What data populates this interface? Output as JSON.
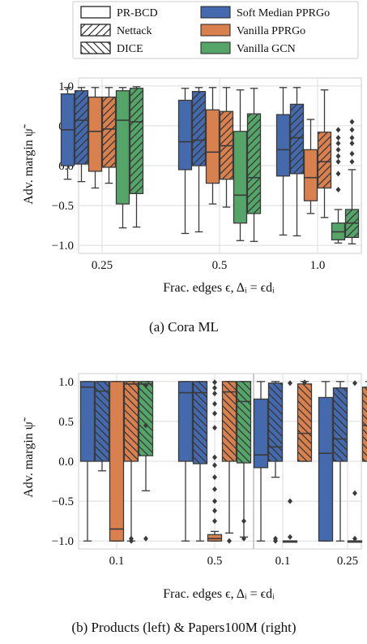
{
  "legend": {
    "patterns": [
      {
        "label": "PR-BCD",
        "hatch": "none"
      },
      {
        "label": "Nettack",
        "hatch": "forward"
      },
      {
        "label": "DICE",
        "hatch": "back"
      }
    ],
    "models": [
      {
        "label": "Soft Median PPRGo",
        "color": "#4469ac"
      },
      {
        "label": "Vanilla PPRGo",
        "color": "#d9804f"
      },
      {
        "label": "Vanilla GCN",
        "color": "#55a568"
      }
    ]
  },
  "chart_data": [
    {
      "type": "box",
      "panel": "a",
      "caption": "(a) Cora ML",
      "ylabel": "Adv. margin ψ̃",
      "xlabel": "Frac. edges ϵ, Δᵢ = ϵdᵢ",
      "ylim": [
        -1.1,
        1.1
      ],
      "yticks": [
        1.0,
        0.5,
        0.0,
        -0.5,
        -1.0
      ],
      "ytick_labels": [
        "1.0",
        "0.5",
        "0.0",
        "−0.5",
        "−1.0"
      ],
      "grid": true,
      "categories": [
        "0.25",
        "0.5",
        "1.0"
      ],
      "groups": [
        {
          "category": "0.25",
          "boxes": [
            {
              "model": "Soft Median PPRGo",
              "attack": "PR-BCD",
              "whislo": -0.17,
              "q1": 0.0,
              "med": 0.45,
              "q3": 0.9,
              "whishi": 0.98,
              "fliers": []
            },
            {
              "model": "Soft Median PPRGo",
              "attack": "Nettack",
              "whislo": -0.2,
              "q1": 0.02,
              "med": 0.57,
              "q3": 0.94,
              "whishi": 0.98,
              "fliers": []
            },
            {
              "model": "Vanilla PPRGo",
              "attack": "PR-BCD",
              "whislo": -0.28,
              "q1": -0.07,
              "med": 0.43,
              "q3": 0.86,
              "whishi": 0.98,
              "fliers": []
            },
            {
              "model": "Vanilla PPRGo",
              "attack": "Nettack",
              "whislo": -0.22,
              "q1": -0.02,
              "med": 0.46,
              "q3": 0.86,
              "whishi": 0.98,
              "fliers": []
            },
            {
              "model": "Vanilla GCN",
              "attack": "PR-BCD",
              "whislo": -0.78,
              "q1": -0.48,
              "med": 0.57,
              "q3": 0.94,
              "whishi": 0.98,
              "fliers": []
            },
            {
              "model": "Vanilla GCN",
              "attack": "Nettack",
              "whislo": -0.77,
              "q1": -0.35,
              "med": 0.55,
              "q3": 0.97,
              "whishi": 0.99,
              "fliers": []
            }
          ]
        },
        {
          "category": "0.5",
          "boxes": [
            {
              "model": "Soft Median PPRGo",
              "attack": "PR-BCD",
              "whislo": -0.85,
              "q1": -0.05,
              "med": 0.3,
              "q3": 0.82,
              "whishi": 0.97,
              "fliers": []
            },
            {
              "model": "Soft Median PPRGo",
              "attack": "Nettack",
              "whislo": -0.83,
              "q1": 0.0,
              "med": 0.32,
              "q3": 0.93,
              "whishi": 0.98,
              "fliers": []
            },
            {
              "model": "Vanilla PPRGo",
              "attack": "PR-BCD",
              "whislo": -0.48,
              "q1": -0.22,
              "med": 0.17,
              "q3": 0.7,
              "whishi": 0.98,
              "fliers": []
            },
            {
              "model": "Vanilla PPRGo",
              "attack": "Nettack",
              "whislo": -0.52,
              "q1": -0.17,
              "med": 0.25,
              "q3": 0.68,
              "whishi": 0.98,
              "fliers": []
            },
            {
              "model": "Vanilla GCN",
              "attack": "PR-BCD",
              "whislo": -0.94,
              "q1": -0.72,
              "med": -0.37,
              "q3": 0.43,
              "whishi": 0.95,
              "fliers": []
            },
            {
              "model": "Vanilla GCN",
              "attack": "Nettack",
              "whislo": -0.95,
              "q1": -0.6,
              "med": -0.15,
              "q3": 0.65,
              "whishi": 0.97,
              "fliers": []
            }
          ]
        },
        {
          "category": "1.0",
          "boxes": [
            {
              "model": "Soft Median PPRGo",
              "attack": "PR-BCD",
              "whislo": -0.87,
              "q1": -0.13,
              "med": 0.2,
              "q3": 0.64,
              "whishi": 0.98,
              "fliers": []
            },
            {
              "model": "Soft Median PPRGo",
              "attack": "Nettack",
              "whislo": -0.88,
              "q1": -0.1,
              "med": 0.35,
              "q3": 0.77,
              "whishi": 0.98,
              "fliers": []
            },
            {
              "model": "Vanilla PPRGo",
              "attack": "PR-BCD",
              "whislo": -0.6,
              "q1": -0.44,
              "med": -0.15,
              "q3": 0.2,
              "whishi": 0.58,
              "fliers": []
            },
            {
              "model": "Vanilla PPRGo",
              "attack": "Nettack",
              "whislo": -0.65,
              "q1": -0.28,
              "med": 0.05,
              "q3": 0.42,
              "whishi": 0.95,
              "fliers": []
            },
            {
              "model": "Vanilla GCN",
              "attack": "PR-BCD",
              "whislo": -0.97,
              "q1": -0.93,
              "med": -0.83,
              "q3": -0.72,
              "whishi": -0.55,
              "fliers": [
                0.05,
                0.12,
                0.2,
                0.28,
                0.35,
                0.45,
                -0.1,
                -0.3
              ]
            },
            {
              "model": "Vanilla GCN",
              "attack": "Nettack",
              "whislo": -0.98,
              "q1": -0.9,
              "med": -0.72,
              "q3": -0.55,
              "whishi": -0.05,
              "fliers": [
                0.05,
                0.15,
                0.28,
                0.35,
                0.45,
                0.55
              ]
            }
          ]
        }
      ]
    },
    {
      "type": "box",
      "panel": "b",
      "caption": "(b) Products (left) & Papers100M (right)",
      "ylabel": "Adv. margin ψ̃",
      "xlabel": "Frac. edges ϵ, Δᵢ = ϵdᵢ",
      "ylim": [
        -1.1,
        1.1
      ],
      "yticks": [
        1.0,
        0.5,
        0.0,
        -0.5,
        -1.0
      ],
      "ytick_labels": [
        "1.0",
        "0.5",
        "0.0",
        "−0.5",
        "−1.0"
      ],
      "grid": true,
      "categories": [
        "0.1",
        "0.5",
        "0.1",
        "0.25"
      ],
      "groups": [
        {
          "category": "0.1",
          "boxes": [
            {
              "model": "Soft Median PPRGo",
              "attack": "PR-BCD",
              "whislo": -1.0,
              "q1": 0.0,
              "med": 0.93,
              "q3": 1.0,
              "whishi": 1.0,
              "fliers": []
            },
            {
              "model": "Soft Median PPRGo",
              "attack": "DICE",
              "whislo": -0.12,
              "q1": 0.0,
              "med": 0.88,
              "q3": 1.0,
              "whishi": 1.0,
              "fliers": []
            },
            {
              "model": "Vanilla PPRGo",
              "attack": "PR-BCD",
              "whislo": -1.0,
              "q1": -1.0,
              "med": -0.85,
              "q3": 1.0,
              "whishi": 1.0,
              "fliers": []
            },
            {
              "model": "Vanilla PPRGo",
              "attack": "DICE",
              "whislo": -1.0,
              "q1": 0.0,
              "med": 0.97,
              "q3": 1.0,
              "whishi": 1.0,
              "fliers": [
                -0.97,
                -1.0
              ]
            },
            {
              "model": "Vanilla GCN",
              "attack": "DICE",
              "whislo": -0.37,
              "q1": 0.07,
              "med": 0.97,
              "q3": 1.0,
              "whishi": 1.0,
              "fliers": [
                0.95,
                0.45,
                -0.97
              ]
            }
          ]
        },
        {
          "category": "0.5",
          "boxes": [
            {
              "model": "Soft Median PPRGo",
              "attack": "PR-BCD",
              "whislo": -1.0,
              "q1": 0.0,
              "med": 0.86,
              "q3": 1.0,
              "whishi": 1.0,
              "fliers": []
            },
            {
              "model": "Soft Median PPRGo",
              "attack": "DICE",
              "whislo": -1.0,
              "q1": -0.03,
              "med": 0.86,
              "q3": 1.0,
              "whishi": 1.0,
              "fliers": []
            },
            {
              "model": "Vanilla PPRGo",
              "attack": "PR-BCD",
              "whislo": -1.0,
              "q1": -1.0,
              "med": -0.97,
              "q3": -0.92,
              "whishi": -0.88,
              "fliers": [
                0.99,
                0.92,
                0.85,
                0.72,
                0.6,
                0.42,
                0.05,
                -0.05,
                -0.2,
                -0.35,
                -0.5,
                -0.62,
                -0.75
              ]
            },
            {
              "model": "Vanilla PPRGo",
              "attack": "DICE",
              "whislo": -0.9,
              "q1": 0.0,
              "med": 0.87,
              "q3": 1.0,
              "whishi": 1.0,
              "fliers": [
                -1.0
              ]
            },
            {
              "model": "Vanilla GCN",
              "attack": "DICE",
              "whislo": -0.95,
              "q1": -0.02,
              "med": 0.75,
              "q3": 1.0,
              "whishi": 1.0,
              "fliers": [
                -0.75,
                -0.97
              ]
            }
          ]
        },
        {
          "category": "0.1",
          "boxes": [
            {
              "model": "Soft Median PPRGo",
              "attack": "PR-BCD",
              "whislo": -1.0,
              "q1": -0.08,
              "med": 0.08,
              "q3": 0.78,
              "whishi": 1.0,
              "fliers": []
            },
            {
              "model": "Soft Median PPRGo",
              "attack": "DICE",
              "whislo": -0.2,
              "q1": 0.0,
              "med": 0.18,
              "q3": 0.98,
              "whishi": 1.0,
              "fliers": [
                -0.97,
                -1.0
              ]
            },
            {
              "model": "Vanilla PPRGo",
              "attack": "PR-BCD",
              "whislo": -1.0,
              "q1": -1.0,
              "med": -1.0,
              "q3": -1.0,
              "whishi": -1.0,
              "fliers": [
                0.98,
                -0.5,
                -0.95
              ]
            },
            {
              "model": "Vanilla PPRGo",
              "attack": "DICE",
              "whislo": 0.0,
              "q1": 0.0,
              "med": 0.35,
              "q3": 0.97,
              "whishi": 1.0,
              "fliers": [
                0.99
              ]
            }
          ]
        },
        {
          "category": "0.25",
          "boxes": [
            {
              "model": "Soft Median PPRGo",
              "attack": "PR-BCD",
              "whislo": -1.0,
              "q1": -1.0,
              "med": 0.1,
              "q3": 0.8,
              "whishi": 1.0,
              "fliers": []
            },
            {
              "model": "Soft Median PPRGo",
              "attack": "DICE",
              "whislo": -1.0,
              "q1": 0.0,
              "med": 0.28,
              "q3": 0.92,
              "whishi": 1.0,
              "fliers": []
            },
            {
              "model": "Vanilla PPRGo",
              "attack": "PR-BCD",
              "whislo": -1.0,
              "q1": -1.0,
              "med": -1.0,
              "q3": -1.0,
              "whishi": -1.0,
              "fliers": [
                0.98,
                -0.4,
                -0.97
              ]
            },
            {
              "model": "Vanilla PPRGo",
              "attack": "DICE",
              "whislo": 0.0,
              "q1": 0.0,
              "med": 0.45,
              "q3": 0.93,
              "whishi": 1.0,
              "fliers": []
            }
          ]
        }
      ]
    }
  ]
}
